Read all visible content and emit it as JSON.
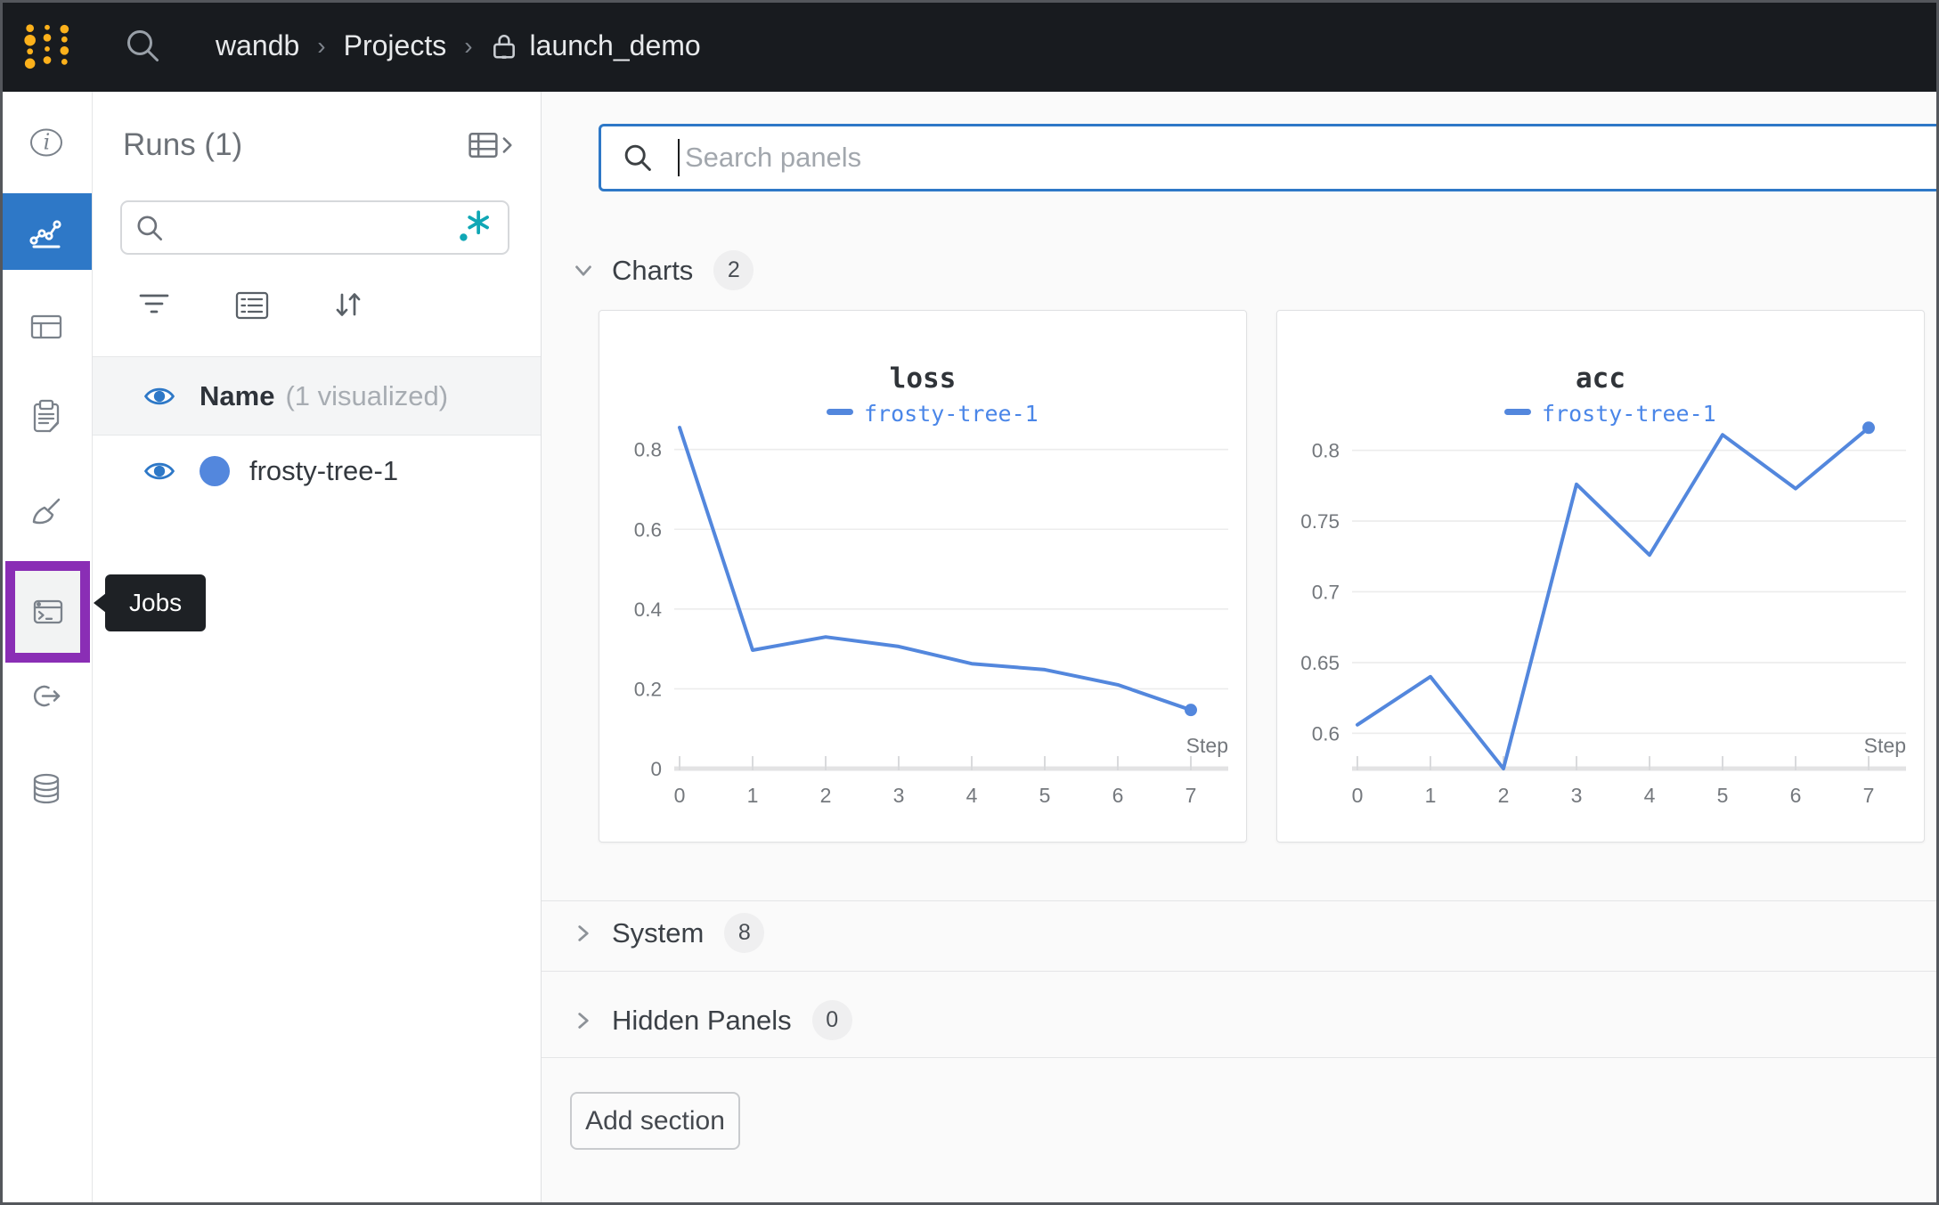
{
  "navbar": {
    "breadcrumb": {
      "items": [
        "wandb",
        "Projects",
        "launch_demo"
      ],
      "separator": "›"
    }
  },
  "sidebar": {
    "items": [
      {
        "name": "overview",
        "icon": "info-icon",
        "active": false,
        "highlighted": false
      },
      {
        "name": "workspace",
        "icon": "line-chart-icon",
        "active": true,
        "highlighted": false
      },
      {
        "name": "runs-table",
        "icon": "table-icon",
        "active": false,
        "highlighted": false
      },
      {
        "name": "reports",
        "icon": "clipboard-icon",
        "active": false,
        "highlighted": false
      },
      {
        "name": "sweeps",
        "icon": "broom-icon",
        "active": false,
        "highlighted": false
      },
      {
        "name": "jobs",
        "icon": "terminal-icon",
        "active": false,
        "highlighted": true
      },
      {
        "name": "automations",
        "icon": "link-out-icon",
        "active": false,
        "highlighted": false
      },
      {
        "name": "artifacts",
        "icon": "database-icon",
        "active": false,
        "highlighted": false
      }
    ],
    "tooltip": {
      "label": "Jobs"
    }
  },
  "runs_panel": {
    "title": "Runs (1)",
    "search": {
      "value": "",
      "placeholder": ""
    },
    "header": {
      "name_label": "Name",
      "visualized_label": "(1 visualized)"
    },
    "runs": [
      {
        "name": "frosty-tree-1",
        "color": "#5387dd",
        "visible": true
      }
    ]
  },
  "main": {
    "search_placeholder": "Search panels",
    "sections": [
      {
        "label": "Charts",
        "count": "2",
        "expanded": true
      },
      {
        "label": "System",
        "count": "8",
        "expanded": false
      },
      {
        "label": "Hidden Panels",
        "count": "0",
        "expanded": false
      }
    ],
    "add_section_label": "Add section"
  },
  "chart_data": [
    {
      "type": "line",
      "title": "loss",
      "xlabel": "Step",
      "ylabel": "",
      "grid": true,
      "legend_position": "top",
      "xticks": [
        0,
        1,
        2,
        3,
        4,
        5,
        6,
        7
      ],
      "yticks": [
        {
          "v": 0,
          "label": "0"
        },
        {
          "v": 0.2,
          "label": "0.2"
        },
        {
          "v": 0.4,
          "label": "0.4"
        },
        {
          "v": 0.6,
          "label": "0.6"
        },
        {
          "v": 0.8,
          "label": "0.8"
        }
      ],
      "ylim": [
        0,
        0.835
      ],
      "series": [
        {
          "name": "frosty-tree-1",
          "color": "#5387dd",
          "x": [
            0,
            1,
            2,
            3,
            4,
            5,
            6,
            7
          ],
          "y": [
            0.855,
            0.297,
            0.33,
            0.306,
            0.263,
            0.248,
            0.21,
            0.147
          ],
          "end_marker": true
        }
      ]
    },
    {
      "type": "line",
      "title": "acc",
      "xlabel": "Step",
      "ylabel": "",
      "grid": true,
      "legend_position": "top",
      "xticks": [
        0,
        1,
        2,
        3,
        4,
        5,
        6,
        7
      ],
      "yticks": [
        {
          "v": 0.6,
          "label": "0.6"
        },
        {
          "v": 0.65,
          "label": "0.65"
        },
        {
          "v": 0.7,
          "label": "0.7"
        },
        {
          "v": 0.75,
          "label": "0.75"
        },
        {
          "v": 0.8,
          "label": "0.8"
        }
      ],
      "ylim": [
        0.575,
        0.8105
      ],
      "series": [
        {
          "name": "frosty-tree-1",
          "color": "#5387dd",
          "x": [
            0,
            1,
            2,
            3,
            4,
            5,
            6,
            7
          ],
          "y": [
            0.606,
            0.64,
            0.575,
            0.776,
            0.726,
            0.811,
            0.773,
            0.816
          ],
          "end_marker": true
        }
      ]
    }
  ],
  "palette": {
    "accent_blue": "#2e78c7",
    "highlight_purple": "#8a2eb5",
    "run_blue": "#5387dd",
    "legend_blue": "#4a86e8",
    "regex_teal": "#10a7b5",
    "logo_yellow": "#fcb11b",
    "navbar_bg": "#181b1f",
    "tooltip_bg": "#1e2125"
  }
}
